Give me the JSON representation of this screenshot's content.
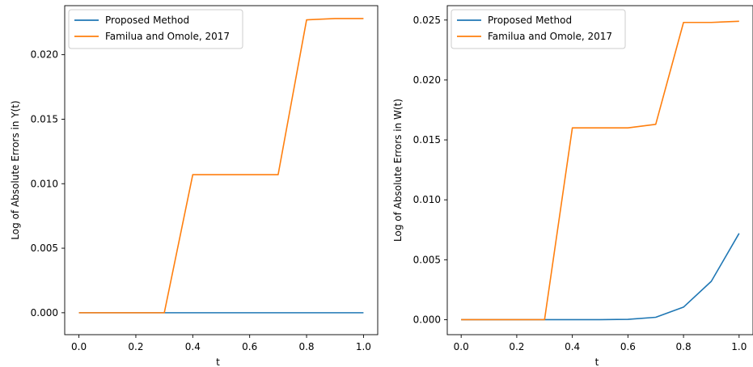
{
  "chart_data": [
    {
      "type": "line",
      "title": "",
      "xlabel": "t",
      "ylabel": "Log of Absolute Errors in Y(t)",
      "x": [
        0.0,
        0.1,
        0.2,
        0.3,
        0.4,
        0.5,
        0.6,
        0.7,
        0.8,
        0.9,
        1.0
      ],
      "xlim": [
        -0.05,
        1.05
      ],
      "ylim": [
        -0.0017,
        0.0238
      ],
      "xticks": [
        0.0,
        0.2,
        0.4,
        0.6,
        0.8,
        1.0
      ],
      "xtick_labels": [
        "0.0",
        "0.2",
        "0.4",
        "0.6",
        "0.8",
        "1.0"
      ],
      "yticks": [
        0.0,
        0.005,
        0.01,
        0.015,
        0.02
      ],
      "ytick_labels": [
        "0.000",
        "0.005",
        "0.010",
        "0.015",
        "0.020"
      ],
      "legend_position": "top-left",
      "series": [
        {
          "name": "Proposed Method",
          "color": "#1f77b4",
          "values": [
            0,
            0,
            0,
            0,
            0,
            0,
            0,
            0,
            0,
            0,
            0
          ]
        },
        {
          "name": "Familua and Omole, 2017",
          "color": "#ff7f0e",
          "values": [
            0,
            0,
            0,
            0,
            0.0107,
            0.0107,
            0.0107,
            0.0107,
            0.0227,
            0.0228,
            0.0228
          ]
        }
      ]
    },
    {
      "type": "line",
      "title": "",
      "xlabel": "t",
      "ylabel": "Log of Absolute Errors in W(t)",
      "x": [
        0.0,
        0.1,
        0.2,
        0.3,
        0.4,
        0.5,
        0.6,
        0.7,
        0.8,
        0.9,
        1.0
      ],
      "xlim": [
        -0.05,
        1.05
      ],
      "ylim": [
        -0.00125,
        0.0262
      ],
      "xticks": [
        0.0,
        0.2,
        0.4,
        0.6,
        0.8,
        1.0
      ],
      "xtick_labels": [
        "0.0",
        "0.2",
        "0.4",
        "0.6",
        "0.8",
        "1.0"
      ],
      "yticks": [
        0.0,
        0.005,
        0.01,
        0.015,
        0.02,
        0.025
      ],
      "ytick_labels": [
        "0.000",
        "0.005",
        "0.010",
        "0.015",
        "0.020",
        "0.025"
      ],
      "legend_position": "top-left",
      "series": [
        {
          "name": "Proposed Method",
          "color": "#1f77b4",
          "values": [
            0,
            0,
            0,
            0,
            0,
            0,
            3e-05,
            0.0002,
            0.00105,
            0.0032,
            0.0072
          ]
        },
        {
          "name": "Familua and Omole, 2017",
          "color": "#ff7f0e",
          "values": [
            0,
            0,
            0,
            0,
            0.016,
            0.016,
            0.016,
            0.0163,
            0.0248,
            0.0248,
            0.0249
          ]
        }
      ]
    }
  ]
}
